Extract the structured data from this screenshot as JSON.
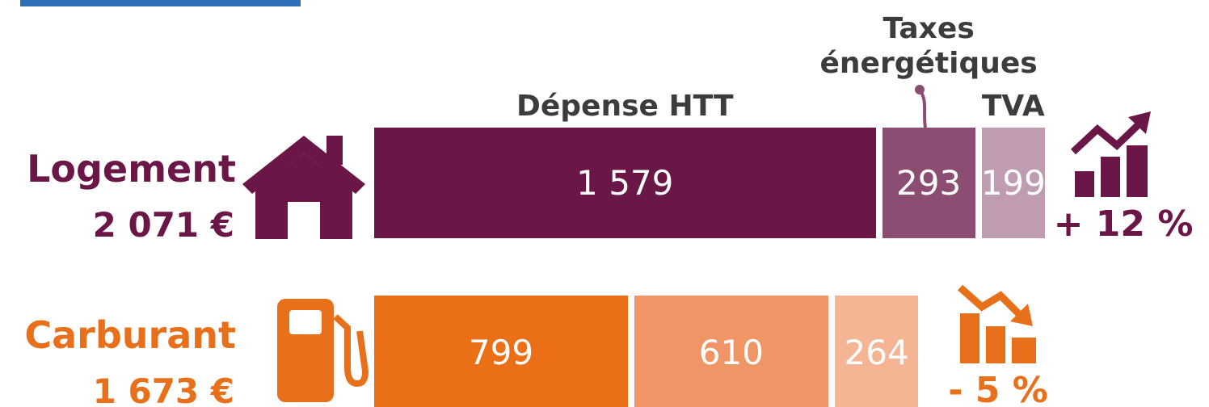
{
  "chart_data": {
    "type": "bar",
    "orientation": "horizontal",
    "stacked": true,
    "categories": [
      "Logement",
      "Carburant"
    ],
    "category_colors": [
      "#6a1748",
      "#e8701a"
    ],
    "totals": [
      2071,
      1673
    ],
    "total_labels": [
      "2 071 €",
      "1 673 €"
    ],
    "changes": [
      12,
      -5
    ],
    "change_labels": [
      "+ 12 %",
      "- 5 %"
    ],
    "series": [
      {
        "name": "Dépense HTT",
        "colors": [
          "#6a1748",
          "#eb6f17"
        ],
        "values": [
          1579,
          799
        ],
        "value_labels": [
          "1 579",
          "799"
        ]
      },
      {
        "name": "Taxes énergétiques",
        "colors": [
          "#8b4e72",
          "#f09566"
        ],
        "values": [
          293,
          610
        ]
      },
      {
        "name": "TVA",
        "colors": [
          "#c09cb2",
          "#f5b594"
        ],
        "values": [
          199,
          264
        ]
      }
    ]
  }
}
